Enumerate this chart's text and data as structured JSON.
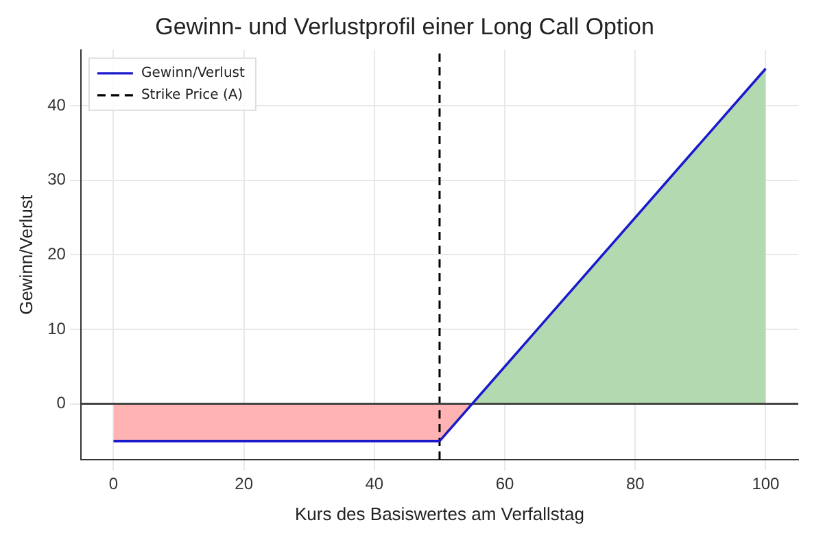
{
  "chart_data": {
    "type": "line",
    "title": "Gewinn- und Verlustprofil einer Long Call Option",
    "xlabel": "Kurs des Basiswertes am Verfallstag",
    "ylabel": "Gewinn/Verlust",
    "series": [
      {
        "type": "area",
        "color": "#ffb3b3",
        "x": [
          0,
          50,
          55
        ],
        "values": [
          -5,
          -5,
          0
        ]
      },
      {
        "type": "area",
        "color": "#b3d9b0",
        "x": [
          55,
          100
        ],
        "values": [
          0,
          45
        ]
      },
      {
        "name": "Gewinn/Verlust",
        "color": "#1a1acc",
        "x": [
          0,
          50,
          100
        ],
        "values": [
          -5,
          -5,
          45
        ]
      }
    ],
    "ref_lines": [
      {
        "axis": "y",
        "value": 0,
        "color": "#444444",
        "line_style": "solid"
      },
      {
        "axis": "x",
        "value": 50,
        "label": "Strike Price (A)",
        "color": "#000000",
        "line_style": "dashed"
      }
    ],
    "xlim": [
      -5,
      105
    ],
    "ylim": [
      -7.5,
      47.5
    ],
    "xticks": [
      0,
      20,
      40,
      60,
      80,
      100
    ],
    "yticks": [
      0,
      10,
      20,
      30,
      40
    ],
    "grid": true,
    "legend": "top left"
  }
}
